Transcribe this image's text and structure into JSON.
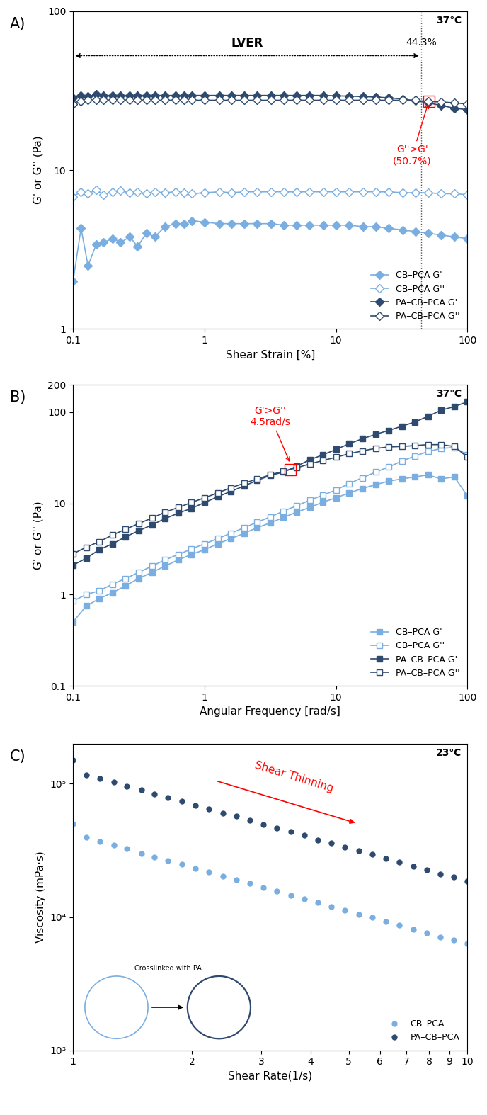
{
  "chart_data": [
    {
      "type": "line",
      "title": "A)",
      "x_label": "Shear Strain [%]",
      "y_label": "G' or G'' (Pa)",
      "log": true,
      "legend": "lower right",
      "grid": false,
      "xlim": [
        0.1,
        100
      ],
      "ylim": [
        1,
        100
      ],
      "xticks": [
        0.1,
        1,
        10,
        100
      ],
      "yticks": [
        1,
        10,
        100
      ],
      "x": [
        0.1,
        0.115,
        0.13,
        0.15,
        0.17,
        0.2,
        0.23,
        0.27,
        0.31,
        0.36,
        0.42,
        0.5,
        0.6,
        0.7,
        0.8,
        1,
        1.3,
        1.6,
        2,
        2.5,
        3.2,
        4,
        5,
        6.3,
        8,
        10,
        12.6,
        16,
        20,
        25,
        32,
        40,
        50,
        63,
        80,
        100
      ],
      "series": [
        {
          "name": "CB–PCA G'",
          "color": "#7aaee0",
          "marker": "diamond",
          "line_style": "solid",
          "values": [
            2.0,
            4.3,
            2.5,
            3.4,
            3.5,
            3.7,
            3.5,
            3.8,
            3.3,
            4.0,
            3.8,
            4.4,
            4.6,
            4.6,
            4.8,
            4.7,
            4.6,
            4.6,
            4.6,
            4.6,
            4.6,
            4.5,
            4.5,
            4.5,
            4.5,
            4.5,
            4.5,
            4.4,
            4.4,
            4.3,
            4.2,
            4.1,
            4.0,
            3.9,
            3.8,
            3.7
          ]
        },
        {
          "name": "CB–PCA G''",
          "color": "#7aaee0",
          "marker": "open-diamond",
          "line_style": "solid",
          "values": [
            6.8,
            7.3,
            7.1,
            7.5,
            7.0,
            7.3,
            7.4,
            7.2,
            7.3,
            7.1,
            7.3,
            7.2,
            7.3,
            7.2,
            7.1,
            7.2,
            7.3,
            7.2,
            7.3,
            7.3,
            7.3,
            7.3,
            7.3,
            7.3,
            7.3,
            7.3,
            7.3,
            7.3,
            7.3,
            7.3,
            7.2,
            7.2,
            7.2,
            7.1,
            7.1,
            7.0
          ]
        },
        {
          "name": "PA–CB–PCA G'",
          "color": "#2e4a6e",
          "marker": "diamond",
          "line_style": "solid",
          "values": [
            28.5,
            29.5,
            29,
            30,
            29.5,
            29.5,
            29.5,
            29.5,
            29.5,
            29.5,
            29.5,
            29.5,
            29.5,
            29.5,
            29.5,
            29.5,
            29.5,
            29.5,
            29.5,
            29.5,
            29.5,
            29.5,
            29.5,
            29.5,
            29.5,
            29.3,
            29.2,
            29,
            28.8,
            28.5,
            28,
            27.3,
            26.5,
            25.5,
            24.5,
            24
          ]
        },
        {
          "name": "PA–CB–PCA G''",
          "color": "#2e4a6e",
          "marker": "open-diamond",
          "line_style": "solid",
          "values": [
            26,
            27,
            27.5,
            27.5,
            27.5,
            27.5,
            27.5,
            27.5,
            27.5,
            27.5,
            27.5,
            27.5,
            27.5,
            27.5,
            27.5,
            27.5,
            27.5,
            27.5,
            27.5,
            27.5,
            27.5,
            27.5,
            27.5,
            27.5,
            27.5,
            27.5,
            27.5,
            27.5,
            27.5,
            27.5,
            27.5,
            27.5,
            27,
            26.8,
            26.5,
            26
          ]
        }
      ],
      "annotations": {
        "temperature": "37℃",
        "region": "LVER",
        "limit": "44.3%",
        "crossover": "G''>G'\n(50.7%)"
      },
      "limit_x": 44.3,
      "crossover_x": 50.7
    },
    {
      "type": "line",
      "title": "B)",
      "x_label": "Angular Frequency [rad/s]",
      "y_label": "G' or G'' (Pa)",
      "log": true,
      "legend": "lower right",
      "grid": false,
      "xlim": [
        0.1,
        100
      ],
      "ylim": [
        0.1,
        200
      ],
      "xticks": [
        0.1,
        1,
        10,
        100
      ],
      "yticks": [
        0.1,
        1,
        10,
        100,
        200
      ],
      "x": [
        0.1,
        0.126,
        0.158,
        0.2,
        0.251,
        0.316,
        0.398,
        0.501,
        0.631,
        0.794,
        1,
        1.26,
        1.58,
        2,
        2.51,
        3.16,
        3.98,
        5.01,
        6.31,
        7.94,
        10,
        12.6,
        15.8,
        20,
        25.1,
        31.6,
        39.8,
        50.1,
        63.1,
        79.4,
        100
      ],
      "series": [
        {
          "name": "CB–PCA G'",
          "color": "#7aaee0",
          "marker": "square",
          "line_style": "solid",
          "values": [
            0.5,
            0.75,
            0.9,
            1.05,
            1.25,
            1.5,
            1.75,
            2.05,
            2.4,
            2.75,
            3.1,
            3.6,
            4.1,
            4.7,
            5.4,
            6.1,
            7,
            8,
            9,
            10.3,
            11.5,
            13,
            14.5,
            16,
            17.5,
            18.5,
            19.5,
            20.5,
            18.5,
            19.5,
            12
          ]
        },
        {
          "name": "CB–PCA G''",
          "color": "#7aaee0",
          "marker": "open-square",
          "line_style": "solid",
          "values": [
            0.85,
            1.0,
            1.1,
            1.3,
            1.5,
            1.75,
            2.05,
            2.4,
            2.75,
            3.15,
            3.6,
            4.1,
            4.7,
            5.4,
            6.2,
            7.1,
            8.2,
            9.4,
            10.8,
            12.3,
            14,
            16.5,
            19,
            22,
            25,
            29,
            33,
            37,
            40,
            41,
            34
          ]
        },
        {
          "name": "PA–CB–PCA G'",
          "color": "#2e4a6e",
          "marker": "square",
          "line_style": "solid",
          "values": [
            2.1,
            2.5,
            3.1,
            3.6,
            4.3,
            5,
            5.8,
            6.8,
            7.8,
            8.8,
            10.2,
            11.8,
            13.5,
            15.5,
            17.8,
            20.2,
            22,
            25.5,
            30,
            34,
            39,
            45,
            51,
            57,
            63,
            70,
            78,
            90,
            105,
            115,
            130
          ]
        },
        {
          "name": "PA–CB–PCA G''",
          "color": "#2e4a6e",
          "marker": "open-square",
          "line_style": "solid",
          "values": [
            2.8,
            3.3,
            3.8,
            4.5,
            5.2,
            6,
            6.9,
            8,
            9,
            10.2,
            11.5,
            13,
            14.8,
            16.6,
            18.5,
            20.5,
            22.5,
            24.5,
            27,
            29.5,
            32,
            35,
            37.5,
            40,
            41.5,
            42,
            43,
            44,
            44,
            42,
            32
          ]
        }
      ],
      "annotations": {
        "temperature": "37℃",
        "crossover": "G'>G''\n4.5rad/s"
      },
      "crossover_x": 4.5
    },
    {
      "type": "scatter",
      "title": "C)",
      "x_label": "Shear Rate(1/s)",
      "y_label": "Viscosity (mPa·s)",
      "log": true,
      "legend": "lower right",
      "grid": false,
      "xlim": [
        1,
        10
      ],
      "ylim": [
        1000,
        200000
      ],
      "xticks": [
        1,
        2,
        3,
        4,
        5,
        6,
        7,
        8,
        9,
        10
      ],
      "yticks": [
        {
          "value": 1000,
          "label": "10³"
        },
        {
          "value": 10000,
          "label": "10⁴"
        },
        {
          "value": 100000,
          "label": "10⁵"
        }
      ],
      "x": [
        1,
        1.08,
        1.17,
        1.27,
        1.37,
        1.49,
        1.61,
        1.74,
        1.89,
        2.04,
        2.21,
        2.4,
        2.59,
        2.81,
        3.04,
        3.29,
        3.56,
        3.86,
        4.18,
        4.52,
        4.89,
        5.3,
        5.74,
        6.21,
        6.72,
        7.28,
        7.88,
        8.53,
        9.24,
        10
      ],
      "series": [
        {
          "name": "CB–PCA",
          "color": "#7aaee0",
          "marker": "circle",
          "line_style": "none",
          "values": [
            50000,
            39500,
            37000,
            34500,
            32500,
            30000,
            28300,
            26500,
            24800,
            23200,
            21800,
            20300,
            19100,
            17800,
            16700,
            15600,
            14600,
            13700,
            12800,
            12000,
            11300,
            10500,
            9900,
            9200,
            8700,
            8100,
            7600,
            7100,
            6700,
            6300
          ]
        },
        {
          "name": "PA–CB–PCA",
          "color": "#2e4a6e",
          "marker": "circle",
          "line_style": "none",
          "values": [
            150000,
            117000,
            110000,
            102500,
            96000,
            90000,
            84000,
            79000,
            74000,
            69000,
            65000,
            60500,
            57000,
            53000,
            49500,
            46500,
            43500,
            41000,
            38000,
            36000,
            33500,
            31500,
            29500,
            27500,
            26000,
            24000,
            22500,
            21000,
            20000,
            18500
          ]
        }
      ],
      "annotations": {
        "temperature": "23℃",
        "trend": "Shear Thinning",
        "inset": "Crosslinked with PA"
      }
    }
  ]
}
